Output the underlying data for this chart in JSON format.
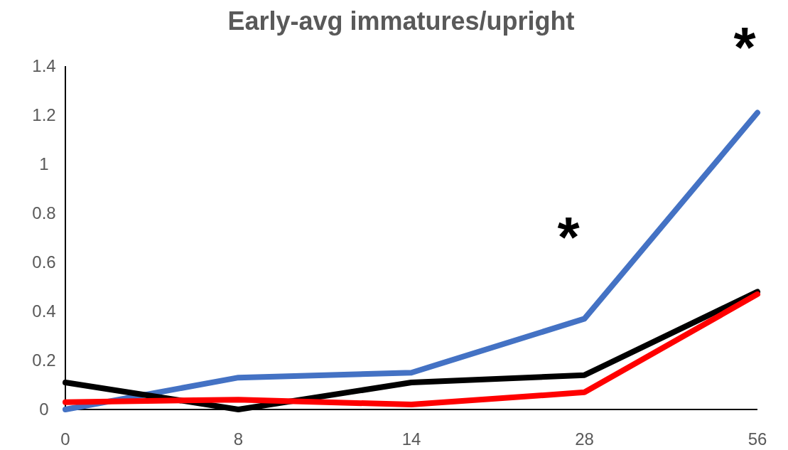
{
  "chart_data": {
    "type": "line",
    "title": "Early-avg immatures/upright",
    "categories": [
      "0",
      "8",
      "14",
      "28",
      "56"
    ],
    "series": [
      {
        "color": "#4472c4",
        "values": [
          0,
          0.13,
          0.15,
          0.37,
          1.21
        ]
      },
      {
        "color": "#000000",
        "values": [
          0.11,
          0,
          0.11,
          0.14,
          0.48
        ]
      },
      {
        "color": "#ff0000",
        "values": [
          0.03,
          0.04,
          0.02,
          0.07,
          0.47
        ]
      }
    ],
    "ylim": [
      0,
      1.4
    ],
    "yticks": [
      0,
      0.2,
      0.4,
      0.6,
      0.8,
      1,
      1.2,
      1.4
    ],
    "grid": false,
    "marker": "none",
    "line_style": "solid",
    "annotations": [
      "*",
      "*"
    ]
  }
}
